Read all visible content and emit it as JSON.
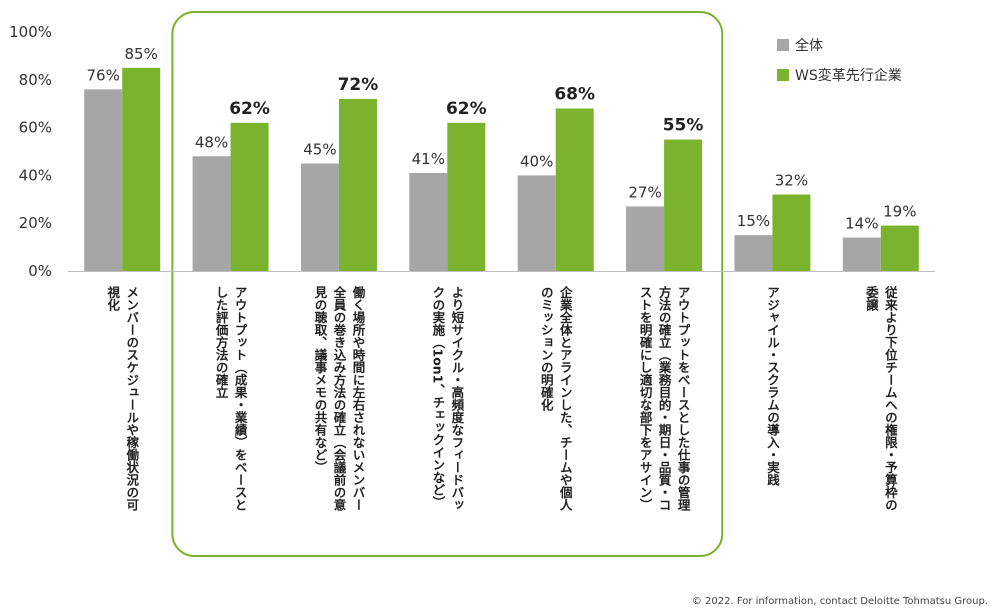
{
  "chart_data": {
    "type": "bar",
    "ylim": [
      0,
      100
    ],
    "yticks": [
      0,
      20,
      40,
      60,
      80,
      100
    ],
    "ytick_suffix": "%",
    "grid": false,
    "legend_position": "top-right",
    "categories": [
      "メンバーのスケジュールや稼働状況の可\n視化",
      "アウトプット（成果・業績）をベースと\nした評価方法の確立",
      "働く場所や時間に左右されないメンバー\n全員の巻き込み方法の確立（会議前の意\n見の聴取、議事メモの共有など）",
      "より短サイクル・高頻度なフィードバッ\nクの実施（1on1、チェックインなど）",
      "企業全体とアラインした、チームや個人\nのミッションの明確化",
      "アウトプットをベースとした仕事の管理\n方法の確立（業務目的・期日・品質・コ\nストを明確にし適切な部下をアサイン）",
      "アジャイル・スクラムの導入・実践",
      "従来より下位チームへの権限・予算枠の\n委譲"
    ],
    "series": [
      {
        "name": "全体",
        "color": "#a6a6a6",
        "values": [
          76,
          48,
          45,
          41,
          40,
          27,
          15,
          14
        ]
      },
      {
        "name": "WS変革先行企業",
        "color": "#7cb32e",
        "values": [
          85,
          62,
          72,
          62,
          68,
          55,
          32,
          19
        ]
      }
    ],
    "data_label_suffix": "%",
    "highlight_box": {
      "from_category": 1,
      "to_category": 5,
      "color": "#7cb32e"
    }
  },
  "footer": {
    "copyright": "© 2022. For information, contact Deloitte Tohmatsu Group."
  }
}
